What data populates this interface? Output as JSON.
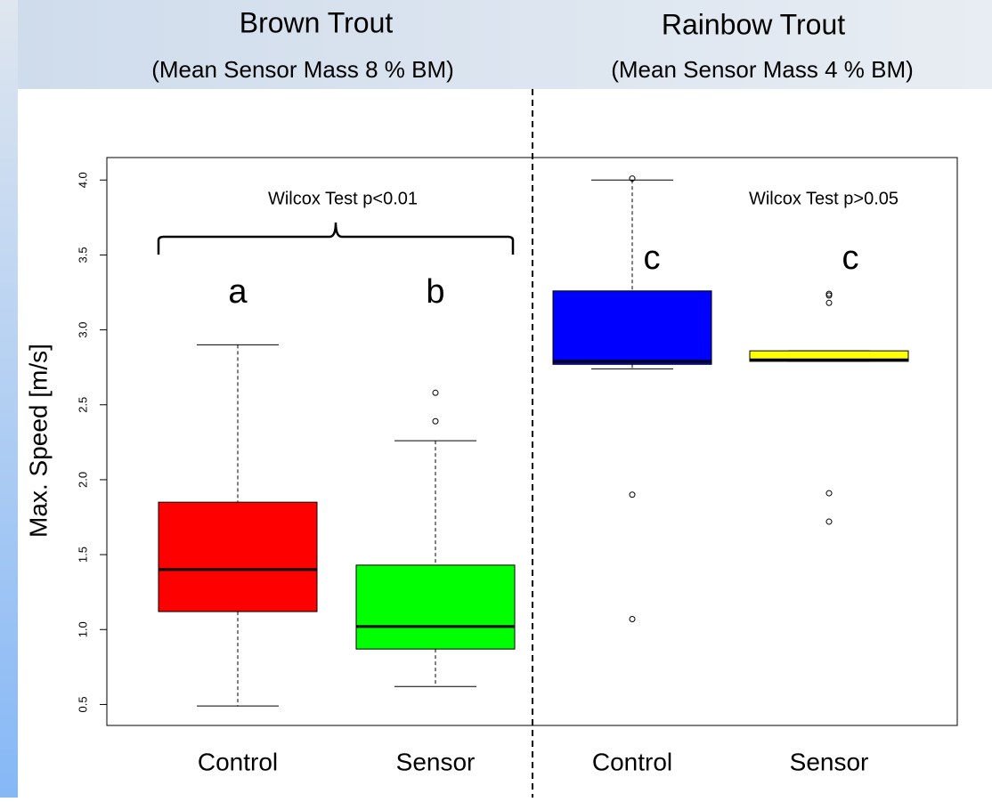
{
  "chart_data": {
    "type": "box",
    "ylabel": "Max. Speed [m/s]",
    "groups": [
      {
        "title": "Brown Trout",
        "subtitle": "(Mean Sensor Mass 8 % BM)",
        "annotation": "Wilcox Test p<0.01"
      },
      {
        "title": "Rainbow Trout",
        "subtitle": "(Mean Sensor Mass 4 % BM)",
        "annotation": "Wilcox Test p>0.05"
      }
    ],
    "categories": [
      "Control",
      "Sensor",
      "Control",
      "Sensor"
    ],
    "boxes": [
      {
        "letter": "a",
        "color": "#ff0000",
        "whisker_low": 0.49,
        "q1": 1.12,
        "median": 1.4,
        "q3": 1.85,
        "whisker_high": 2.9,
        "outliers": []
      },
      {
        "letter": "b",
        "color": "#00ff00",
        "whisker_low": 0.62,
        "q1": 0.87,
        "median": 1.02,
        "q3": 1.43,
        "whisker_high": 2.26,
        "outliers": [
          2.39,
          2.58
        ]
      },
      {
        "letter": "c",
        "color": "#0000ff",
        "whisker_low": 2.74,
        "q1": 2.77,
        "median": 2.79,
        "q3": 3.26,
        "whisker_high": 4.0,
        "outliers": [
          4.01,
          1.9,
          1.07
        ]
      },
      {
        "letter": "c",
        "color": "#ffff00",
        "whisker_low": 2.79,
        "q1": 2.79,
        "median": 2.8,
        "q3": 2.86,
        "whisker_high": 2.86,
        "outliers": [
          3.24,
          3.23,
          3.18,
          1.91,
          1.72
        ]
      }
    ],
    "ylim": [
      0.36,
      4.15
    ],
    "yticks": [
      0.5,
      {
        "value": 1,
        "label": "1.0"
      },
      1.5,
      {
        "value": 2,
        "label": "2.0"
      },
      2.5,
      {
        "value": 3,
        "label": "3.0"
      },
      3.5,
      {
        "value": 4,
        "label": "4.0"
      }
    ]
  }
}
